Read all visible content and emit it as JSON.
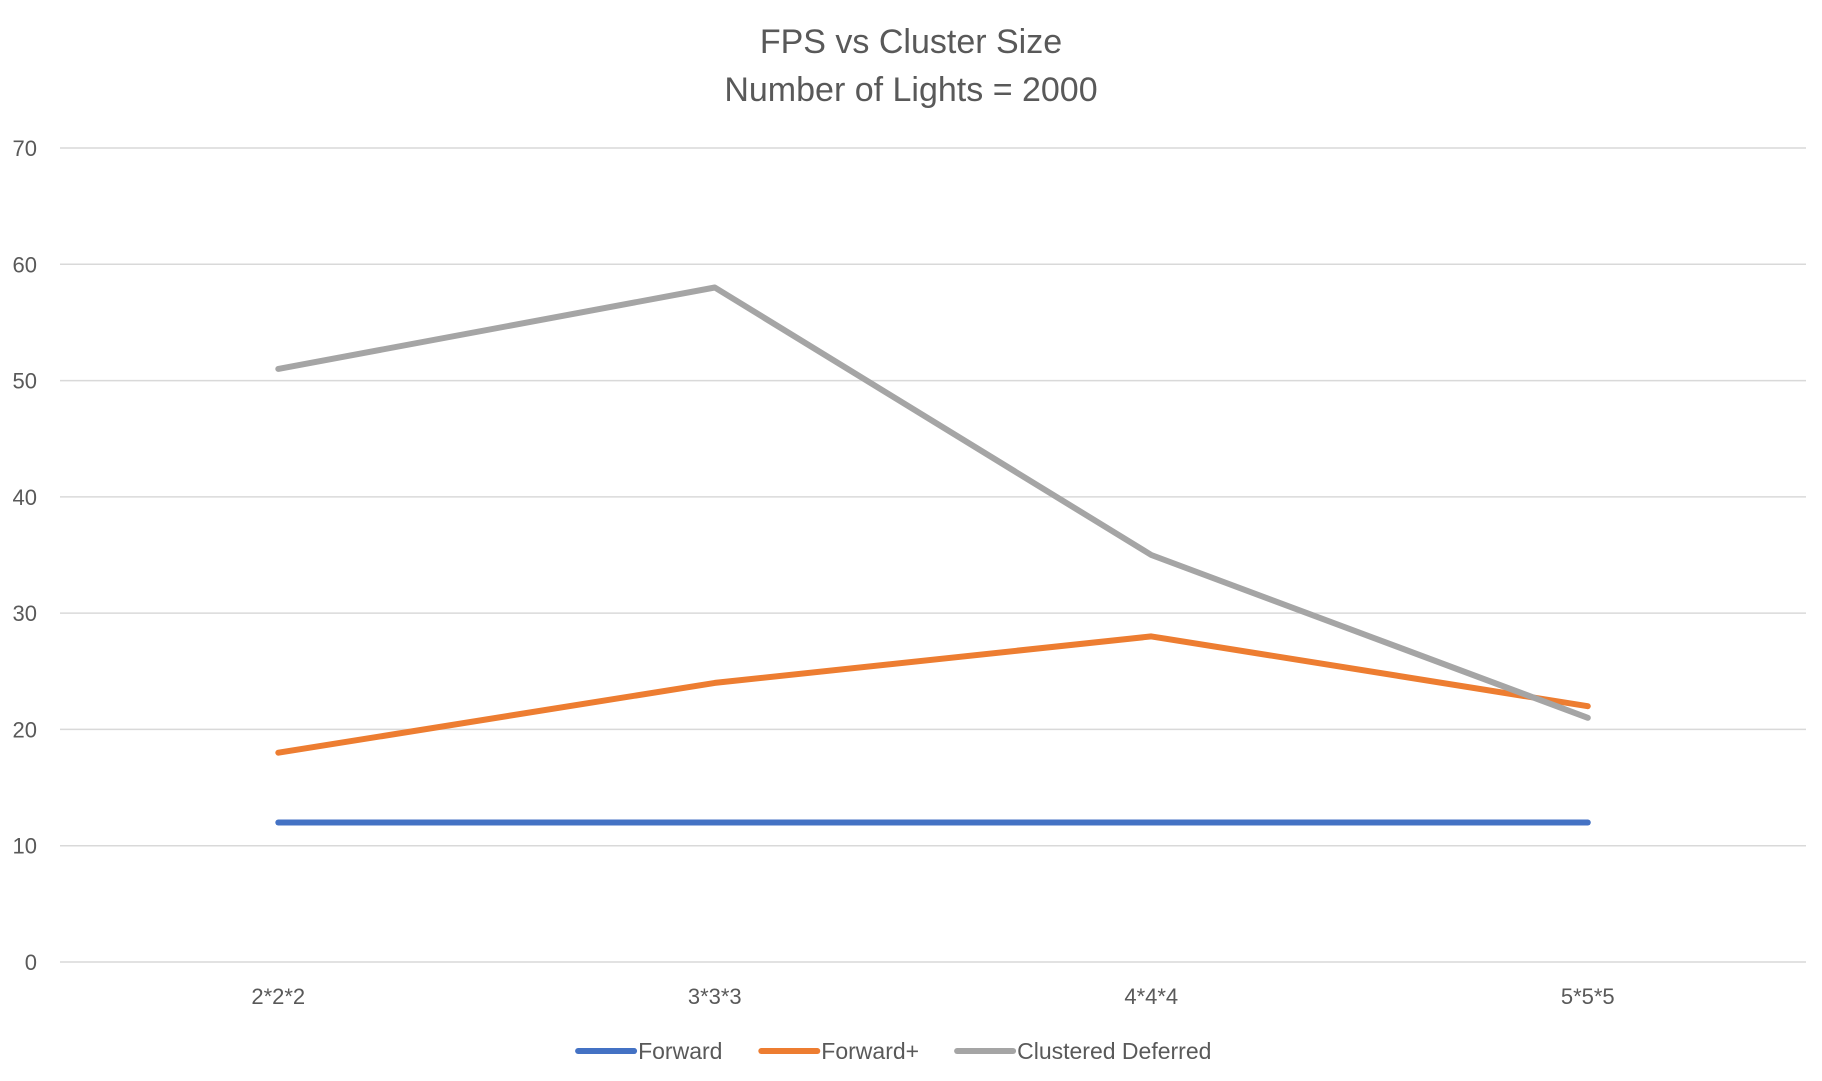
{
  "chart_data": {
    "type": "line",
    "title": "FPS vs Cluster Size",
    "subtitle": "Number of Lights = 2000",
    "xlabel": "",
    "ylabel": "",
    "categories": [
      "2*2*2",
      "3*3*3",
      "4*4*4",
      "5*5*5"
    ],
    "ylim": [
      0,
      70
    ],
    "yticks": [
      "0",
      "10",
      "20",
      "30",
      "40",
      "50",
      "60",
      "70"
    ],
    "grid": true,
    "legend_position": "bottom",
    "series": [
      {
        "name": "Forward",
        "color": "#4472c4",
        "values": [
          12,
          12,
          12,
          12
        ]
      },
      {
        "name": "Forward+",
        "color": "#ed7d31",
        "values": [
          18,
          24,
          28,
          22
        ]
      },
      {
        "name": "Clustered Deferred",
        "color": "#a5a5a5",
        "values": [
          51,
          58,
          35,
          21
        ]
      }
    ]
  }
}
